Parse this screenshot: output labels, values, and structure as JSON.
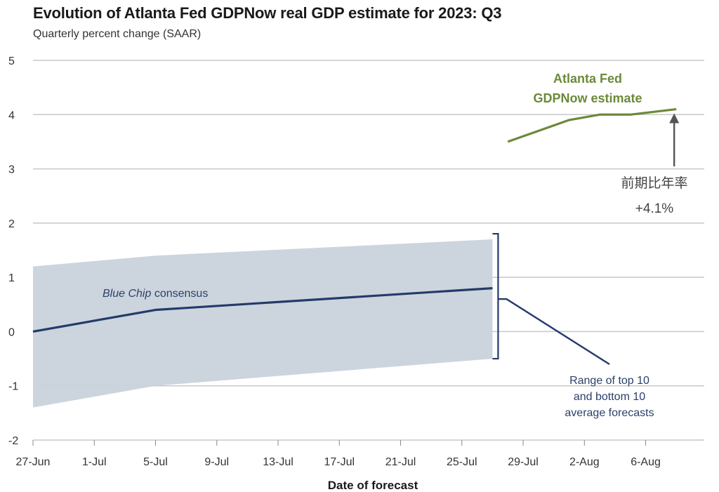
{
  "chart_data": {
    "type": "line",
    "title": "Evolution of Atlanta Fed GDPNow real GDP estimate for 2023: Q3",
    "subtitle": "Quarterly percent change (SAAR)",
    "xlabel": "Date of forecast",
    "ylabel": "",
    "ylim": [
      -2,
      5
    ],
    "y_ticks": [
      "5",
      "4",
      "3",
      "2",
      "1",
      "0",
      "-1",
      "-2"
    ],
    "y_tick_values": [
      5,
      4,
      3,
      2,
      1,
      0,
      -1,
      -2
    ],
    "x_ticks": [
      "27-Jun",
      "1-Jul",
      "5-Jul",
      "9-Jul",
      "13-Jul",
      "17-Jul",
      "21-Jul",
      "25-Jul",
      "29-Jul",
      "2-Aug",
      "6-Aug"
    ],
    "x_tick_days": [
      0,
      4,
      8,
      12,
      16,
      20,
      24,
      28,
      32,
      36,
      40
    ],
    "xlim_days": [
      0,
      43
    ],
    "grid": true,
    "series": [
      {
        "name": "Blue Chip consensus",
        "color": "#243a6b",
        "x_days": [
          0,
          4,
          8,
          30
        ],
        "values": [
          0.0,
          0.2,
          0.4,
          0.8
        ]
      },
      {
        "name": "Atlanta Fed GDPNow estimate",
        "color": "#6b8a3a",
        "x_days": [
          31,
          35,
          37,
          39,
          42
        ],
        "values": [
          3.5,
          3.9,
          4.0,
          4.0,
          4.1
        ]
      }
    ],
    "range_band": {
      "label": "Range of top 10 and bottom 10 average forecasts",
      "color": "#c9d3db",
      "x_days": [
        0,
        8,
        30
      ],
      "upper": [
        1.2,
        1.4,
        1.7
      ],
      "lower": [
        -1.4,
        -1.0,
        -0.5
      ]
    },
    "annotations": {
      "gdpnow_label": [
        "Atlanta Fed",
        "GDPNow estimate"
      ],
      "bluechip_label_italic": "Blue Chip",
      "bluechip_label_rest": " consensus",
      "range_label": [
        "Range of top 10",
        "and bottom 10",
        "average forecasts"
      ],
      "cn_label": "前期比年率",
      "value_label": "+4.1%"
    }
  },
  "colors": {
    "grid": "#c8c8c8",
    "band": "#c9d3db",
    "navy": "#243a6b",
    "green": "#6b8a3a",
    "arrow": "#555555"
  }
}
